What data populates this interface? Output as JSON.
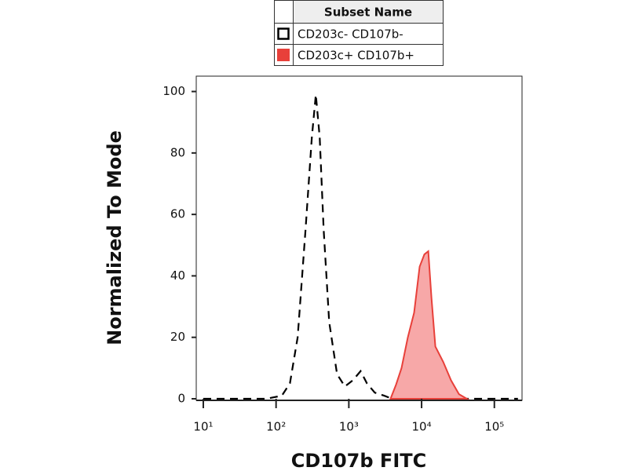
{
  "chart_data": {
    "type": "area",
    "x_label": "CD107b FITC",
    "y_label": "Normalized To Mode",
    "legend_title": "Subset Name",
    "xscale": "log",
    "xlim": [
      8,
      240000
    ],
    "ylim": [
      0,
      105
    ],
    "xticks": [
      {
        "value": 10,
        "label": "10¹"
      },
      {
        "value": 100,
        "label": "10²"
      },
      {
        "value": 1000,
        "label": "10³"
      },
      {
        "value": 10000,
        "label": "10⁴"
      },
      {
        "value": 100000,
        "label": "10⁵"
      }
    ],
    "yticks": [
      0,
      20,
      40,
      60,
      80,
      100
    ],
    "series": [
      {
        "name": "CD203c- CD107b-",
        "color": "#000000",
        "style": "dashed",
        "x": [
          10,
          73,
          120,
          155,
          198,
          254,
          310,
          352,
          398,
          451,
          537,
          689,
          883,
          1132,
          1452,
          1774,
          2275,
          3064,
          3933,
          210900
        ],
        "values": [
          0,
          0,
          1,
          5,
          20,
          55,
          85,
          99,
          85,
          55,
          25,
          8,
          4,
          6,
          9,
          5,
          2,
          1,
          0,
          0
        ]
      },
      {
        "name": "CD203c+ CD107b+",
        "color": "#e8403a",
        "fill": "#f7a8a8",
        "style": "filled",
        "x": [
          3740,
          4456,
          5300,
          6470,
          7890,
          9400,
          10920,
          12360,
          13650,
          15460,
          19820,
          25400,
          32650,
          41870
        ],
        "values": [
          0,
          4.6,
          10,
          20,
          28,
          43,
          47,
          48,
          33,
          17,
          12,
          6,
          1.5,
          0
        ]
      }
    ]
  }
}
